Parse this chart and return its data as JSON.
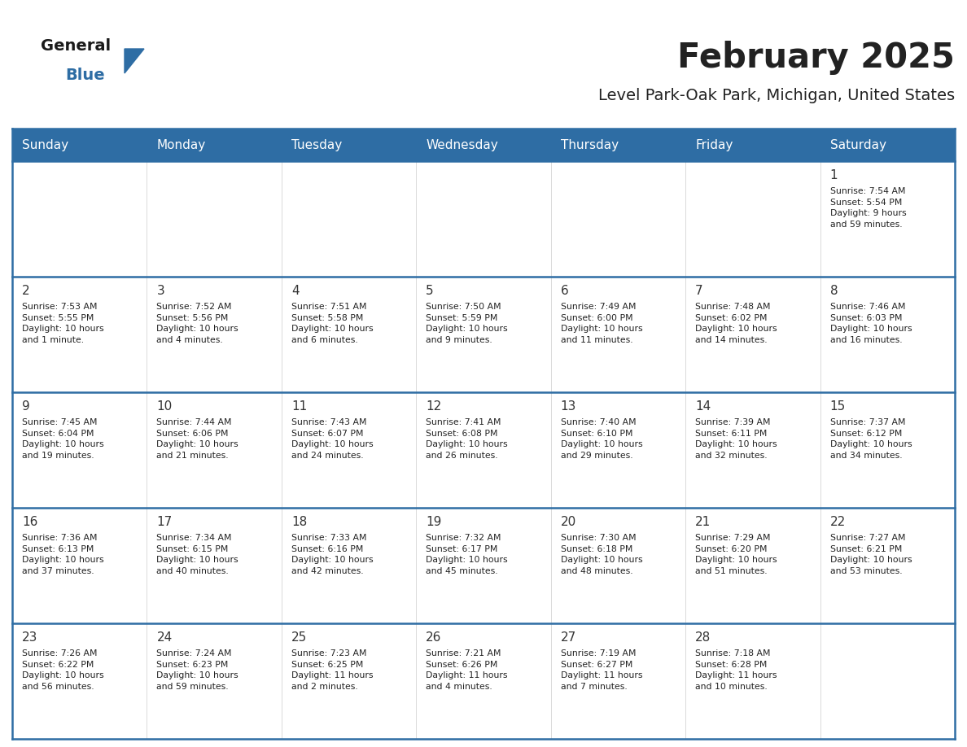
{
  "title": "February 2025",
  "subtitle": "Level Park-Oak Park, Michigan, United States",
  "header_bg": "#2e6da4",
  "header_text": "#ffffff",
  "cell_bg": "#ffffff",
  "cell_bg_alt": "#f0f0f0",
  "text_color": "#222222",
  "day_number_color": "#333333",
  "border_color": "#2e6da4",
  "days_of_week": [
    "Sunday",
    "Monday",
    "Tuesday",
    "Wednesday",
    "Thursday",
    "Friday",
    "Saturday"
  ],
  "weeks": [
    [
      {
        "day": null,
        "info": null
      },
      {
        "day": null,
        "info": null
      },
      {
        "day": null,
        "info": null
      },
      {
        "day": null,
        "info": null
      },
      {
        "day": null,
        "info": null
      },
      {
        "day": null,
        "info": null
      },
      {
        "day": 1,
        "info": "Sunrise: 7:54 AM\nSunset: 5:54 PM\nDaylight: 9 hours\nand 59 minutes."
      }
    ],
    [
      {
        "day": 2,
        "info": "Sunrise: 7:53 AM\nSunset: 5:55 PM\nDaylight: 10 hours\nand 1 minute."
      },
      {
        "day": 3,
        "info": "Sunrise: 7:52 AM\nSunset: 5:56 PM\nDaylight: 10 hours\nand 4 minutes."
      },
      {
        "day": 4,
        "info": "Sunrise: 7:51 AM\nSunset: 5:58 PM\nDaylight: 10 hours\nand 6 minutes."
      },
      {
        "day": 5,
        "info": "Sunrise: 7:50 AM\nSunset: 5:59 PM\nDaylight: 10 hours\nand 9 minutes."
      },
      {
        "day": 6,
        "info": "Sunrise: 7:49 AM\nSunset: 6:00 PM\nDaylight: 10 hours\nand 11 minutes."
      },
      {
        "day": 7,
        "info": "Sunrise: 7:48 AM\nSunset: 6:02 PM\nDaylight: 10 hours\nand 14 minutes."
      },
      {
        "day": 8,
        "info": "Sunrise: 7:46 AM\nSunset: 6:03 PM\nDaylight: 10 hours\nand 16 minutes."
      }
    ],
    [
      {
        "day": 9,
        "info": "Sunrise: 7:45 AM\nSunset: 6:04 PM\nDaylight: 10 hours\nand 19 minutes."
      },
      {
        "day": 10,
        "info": "Sunrise: 7:44 AM\nSunset: 6:06 PM\nDaylight: 10 hours\nand 21 minutes."
      },
      {
        "day": 11,
        "info": "Sunrise: 7:43 AM\nSunset: 6:07 PM\nDaylight: 10 hours\nand 24 minutes."
      },
      {
        "day": 12,
        "info": "Sunrise: 7:41 AM\nSunset: 6:08 PM\nDaylight: 10 hours\nand 26 minutes."
      },
      {
        "day": 13,
        "info": "Sunrise: 7:40 AM\nSunset: 6:10 PM\nDaylight: 10 hours\nand 29 minutes."
      },
      {
        "day": 14,
        "info": "Sunrise: 7:39 AM\nSunset: 6:11 PM\nDaylight: 10 hours\nand 32 minutes."
      },
      {
        "day": 15,
        "info": "Sunrise: 7:37 AM\nSunset: 6:12 PM\nDaylight: 10 hours\nand 34 minutes."
      }
    ],
    [
      {
        "day": 16,
        "info": "Sunrise: 7:36 AM\nSunset: 6:13 PM\nDaylight: 10 hours\nand 37 minutes."
      },
      {
        "day": 17,
        "info": "Sunrise: 7:34 AM\nSunset: 6:15 PM\nDaylight: 10 hours\nand 40 minutes."
      },
      {
        "day": 18,
        "info": "Sunrise: 7:33 AM\nSunset: 6:16 PM\nDaylight: 10 hours\nand 42 minutes."
      },
      {
        "day": 19,
        "info": "Sunrise: 7:32 AM\nSunset: 6:17 PM\nDaylight: 10 hours\nand 45 minutes."
      },
      {
        "day": 20,
        "info": "Sunrise: 7:30 AM\nSunset: 6:18 PM\nDaylight: 10 hours\nand 48 minutes."
      },
      {
        "day": 21,
        "info": "Sunrise: 7:29 AM\nSunset: 6:20 PM\nDaylight: 10 hours\nand 51 minutes."
      },
      {
        "day": 22,
        "info": "Sunrise: 7:27 AM\nSunset: 6:21 PM\nDaylight: 10 hours\nand 53 minutes."
      }
    ],
    [
      {
        "day": 23,
        "info": "Sunrise: 7:26 AM\nSunset: 6:22 PM\nDaylight: 10 hours\nand 56 minutes."
      },
      {
        "day": 24,
        "info": "Sunrise: 7:24 AM\nSunset: 6:23 PM\nDaylight: 10 hours\nand 59 minutes."
      },
      {
        "day": 25,
        "info": "Sunrise: 7:23 AM\nSunset: 6:25 PM\nDaylight: 11 hours\nand 2 minutes."
      },
      {
        "day": 26,
        "info": "Sunrise: 7:21 AM\nSunset: 6:26 PM\nDaylight: 11 hours\nand 4 minutes."
      },
      {
        "day": 27,
        "info": "Sunrise: 7:19 AM\nSunset: 6:27 PM\nDaylight: 11 hours\nand 7 minutes."
      },
      {
        "day": 28,
        "info": "Sunrise: 7:18 AM\nSunset: 6:28 PM\nDaylight: 11 hours\nand 10 minutes."
      },
      {
        "day": null,
        "info": null
      }
    ]
  ],
  "logo_general_color": "#1a1a1a",
  "logo_blue_color": "#2e6da4",
  "logo_triangle_color": "#2e6da4",
  "fig_width": 11.88,
  "fig_height": 9.18,
  "dpi": 100
}
